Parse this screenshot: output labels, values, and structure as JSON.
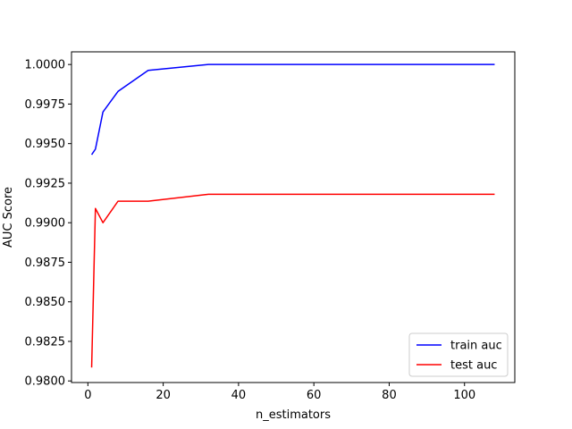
{
  "chart_data": {
    "type": "line",
    "title": "",
    "xlabel": "n_estimators",
    "ylabel": "AUC Score",
    "xlim": [
      -4.35,
      113.35
    ],
    "ylim": [
      0.9799,
      1.0008
    ],
    "xticks": [
      0,
      20,
      40,
      60,
      80,
      100
    ],
    "xtick_labels": [
      "0",
      "20",
      "40",
      "60",
      "80",
      "100"
    ],
    "yticks": [
      0.98,
      0.9825,
      0.985,
      0.9875,
      0.99,
      0.9925,
      0.995,
      0.9975,
      1.0
    ],
    "ytick_labels": [
      "0.9800",
      "0.9825",
      "0.9850",
      "0.9875",
      "0.9900",
      "0.9925",
      "0.9950",
      "0.9975",
      "1.0000"
    ],
    "grid": false,
    "legend": {
      "position": "lower-right"
    },
    "series": [
      {
        "name": "train auc",
        "color": "#0000ff",
        "x": [
          1,
          2,
          4,
          8,
          16,
          32,
          64,
          100,
          108
        ],
        "y": [
          0.9943,
          0.99465,
          0.997,
          0.9983,
          0.99963,
          1.0,
          1.0,
          1.0,
          1.0
        ]
      },
      {
        "name": "test auc",
        "color": "#ff0000",
        "x": [
          1,
          2,
          4,
          8,
          16,
          32,
          64,
          100,
          108
        ],
        "y": [
          0.98085,
          0.9909,
          0.99,
          0.99136,
          0.99136,
          0.9918,
          0.9918,
          0.9918,
          0.9918
        ]
      }
    ]
  }
}
